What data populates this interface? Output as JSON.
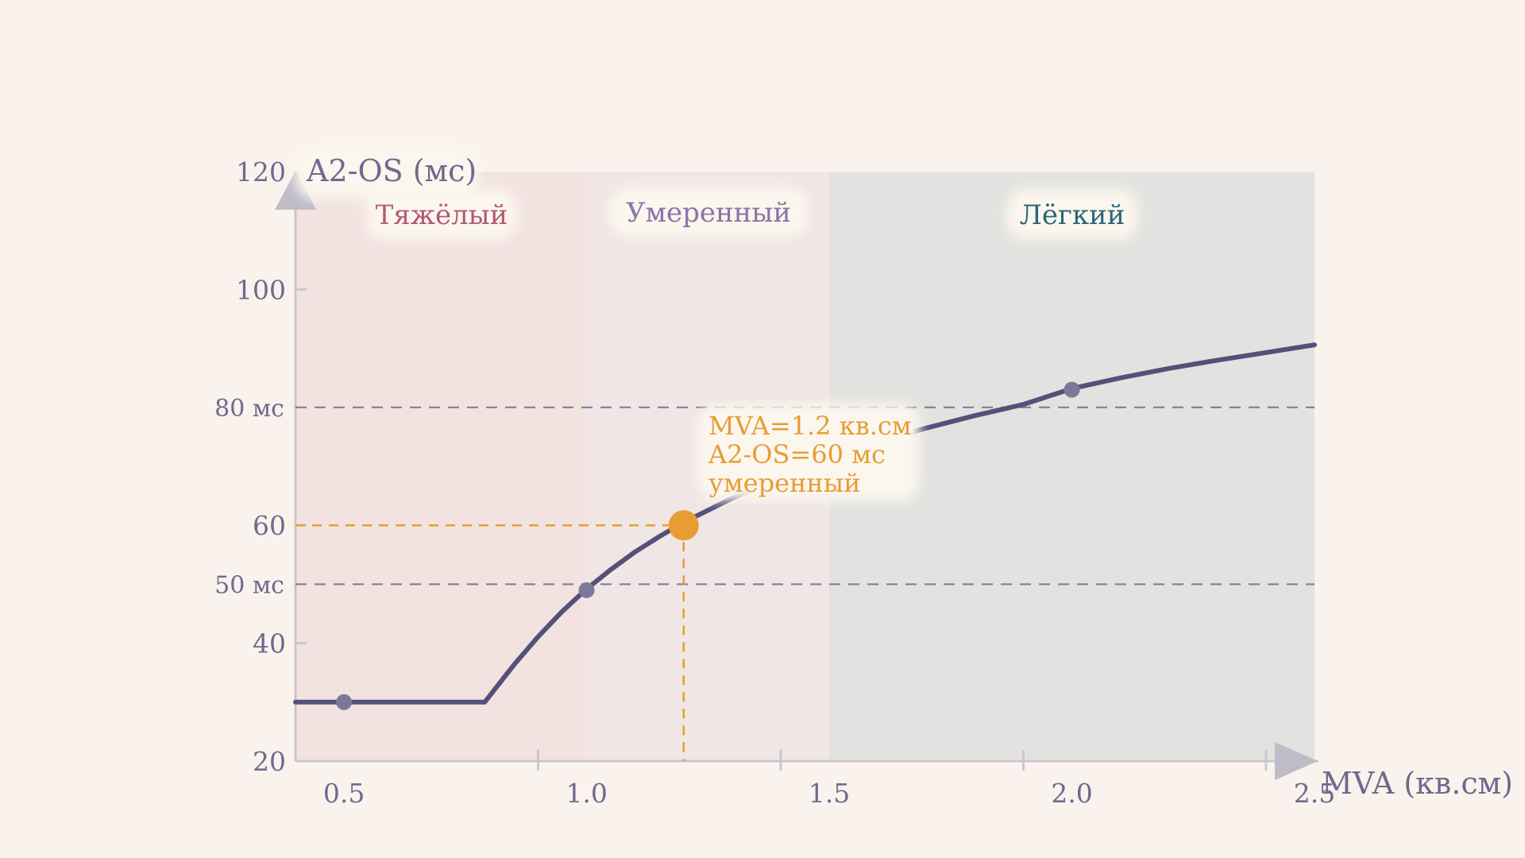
{
  "chart_data": {
    "type": "line",
    "title": "",
    "xlabel": "MVA (кв.см)",
    "ylabel": "A2-OS (мс)",
    "xlim": [
      0.4,
      2.5
    ],
    "ylim": [
      20,
      120
    ],
    "x_ticks": [
      {
        "value": 0.5,
        "label": "0.5"
      },
      {
        "value": 1.0,
        "label": "1.0"
      },
      {
        "value": 1.5,
        "label": "1.5"
      },
      {
        "value": 2.0,
        "label": "2.0"
      },
      {
        "value": 2.5,
        "label": "2.5"
      }
    ],
    "x_minor_ticks": [
      0.9,
      1.4,
      1.9,
      2.4
    ],
    "y_ticks": [
      {
        "value": 20,
        "label": "20"
      },
      {
        "value": 40,
        "label": "40"
      },
      {
        "value": 60,
        "label": "60"
      },
      {
        "value": 100,
        "label": "100"
      },
      {
        "value": 120,
        "label": "120"
      }
    ],
    "reference_lines": [
      {
        "value": 80,
        "label": "80 мс"
      },
      {
        "value": 50,
        "label": "50 мс"
      }
    ],
    "zones": [
      {
        "label": "Тяжёлый",
        "x_from": 0.4,
        "x_to": 1.0,
        "fill": "#f2e3e1",
        "label_color": "#b05a74"
      },
      {
        "label": "Умеренный",
        "x_from": 1.0,
        "x_to": 1.5,
        "fill": "#f0e6e5",
        "label_color": "#8a74a6"
      },
      {
        "label": "Лёгкий",
        "x_from": 1.5,
        "x_to": 2.5,
        "fill": "#e2e3e0",
        "label_color": "#2c6677"
      }
    ],
    "series": [
      {
        "color": "#55507a",
        "curve": [
          [
            0.4,
            30
          ],
          [
            0.79,
            30
          ],
          [
            0.85,
            36.3
          ],
          [
            0.9,
            41.1
          ],
          [
            0.95,
            45.4
          ],
          [
            1.0,
            49.2
          ],
          [
            1.05,
            52.5
          ],
          [
            1.1,
            55.5
          ],
          [
            1.15,
            58.1
          ],
          [
            1.2,
            60.5
          ],
          [
            1.3,
            64.6
          ],
          [
            1.4,
            68.2
          ],
          [
            1.5,
            71.3
          ],
          [
            1.6,
            74.1
          ],
          [
            1.7,
            76.5
          ],
          [
            1.8,
            78.6
          ],
          [
            1.9,
            80.5
          ],
          [
            2.0,
            83.2
          ],
          [
            2.1,
            85.0
          ],
          [
            2.2,
            86.6
          ],
          [
            2.3,
            88.0
          ],
          [
            2.4,
            89.3
          ],
          [
            2.5,
            90.6
          ]
        ],
        "markers": [
          [
            0.5,
            30
          ],
          [
            1.0,
            49
          ],
          [
            2.0,
            83
          ]
        ]
      }
    ],
    "highlight": {
      "x": 1.2,
      "y": 60,
      "color": "#e79d33",
      "lines": [
        "MVA=1.2 кв.см",
        "A2-OS=60 мс",
        "умеренный"
      ]
    },
    "colors": {
      "background": "#faf3ed",
      "axis": "#c9c6cf",
      "text": "#6e6a8e",
      "reference_line": "#7b7796",
      "highlight": "#e79d33"
    }
  }
}
